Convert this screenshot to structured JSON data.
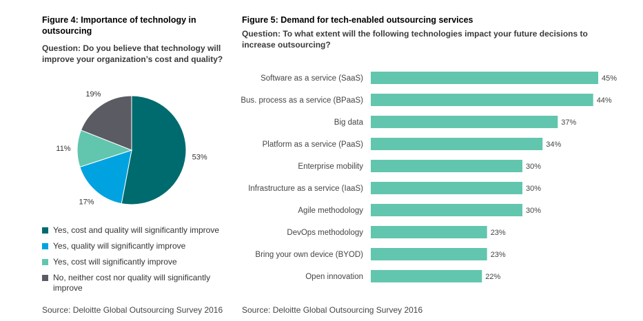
{
  "left_figure": {
    "title": "Figure 4: Importance of technology in outsourcing",
    "question": "Question: Do you believe that technology will improve your organization’s cost and quality?",
    "source": "Source: Deloitte Global Outsourcing Survey 2016"
  },
  "right_figure": {
    "title": "Figure 5: Demand for tech-enabled outsourcing services",
    "question": "Question: To what extent will the following technologies impact your future decisions to increase outsourcing?",
    "source": "Source: Deloitte Global Outsourcing Survey 2016"
  },
  "chart_data": [
    {
      "type": "pie",
      "title": "Figure 4: Importance of technology in outsourcing",
      "slices": [
        {
          "label": "Yes, cost and quality will significantly improve",
          "value": 53,
          "display": "53%",
          "color": "#006b6e"
        },
        {
          "label": "Yes, quality will significantly improve",
          "value": 17,
          "display": "17%",
          "color": "#00a3e0"
        },
        {
          "label": "Yes, cost will significantly improve",
          "value": 11,
          "display": "11%",
          "color": "#62c6ae"
        },
        {
          "label": "No, neither cost nor quality will significantly improve",
          "value": 19,
          "display": "19%",
          "color": "#5b5c63"
        }
      ],
      "legend_position": "bottom"
    },
    {
      "type": "bar",
      "orientation": "horizontal",
      "title": "Figure 5: Demand for tech-enabled outsourcing services",
      "categories": [
        "Software as a service (SaaS)",
        "Bus. process as a service (BPaaS)",
        "Big data",
        "Platform as a service (PaaS)",
        "Enterprise mobility",
        "Infrastructure as a service (IaaS)",
        "Agile methodology",
        "DevOps methodology",
        "Bring your own device (BYOD)",
        "Open innovation"
      ],
      "values": [
        45,
        44,
        37,
        34,
        30,
        30,
        30,
        23,
        23,
        22
      ],
      "value_labels": [
        "45%",
        "44%",
        "37%",
        "34%",
        "30%",
        "30%",
        "30%",
        "23%",
        "23%",
        "22%"
      ],
      "color": "#62c6ae",
      "xlim": [
        0,
        45
      ]
    }
  ]
}
